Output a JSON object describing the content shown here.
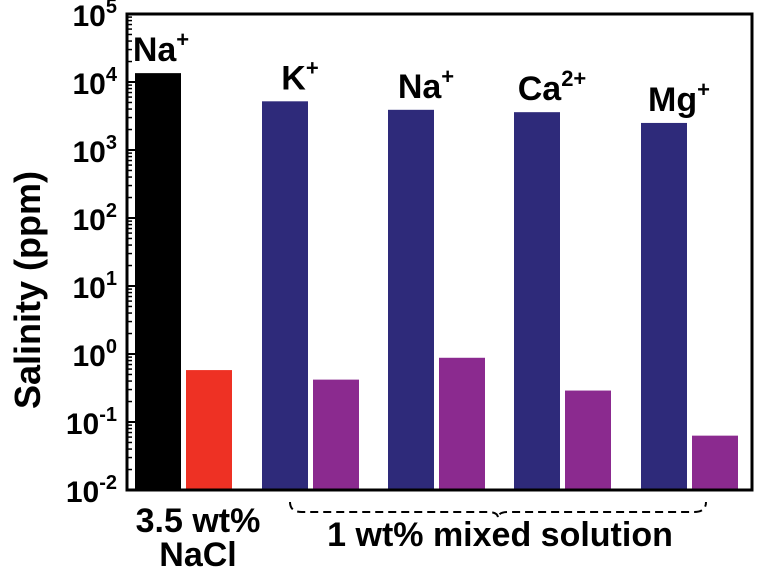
{
  "chart_data": {
    "type": "bar",
    "y_scale": "log",
    "ylabel": "Salinity (ppm)",
    "ylim": [
      0.01,
      100000
    ],
    "y_ticks": [
      {
        "base": "10",
        "exp": "-2",
        "value": 0.01
      },
      {
        "base": "10",
        "exp": "-1",
        "value": 0.1
      },
      {
        "base": "10",
        "exp": "0",
        "value": 1
      },
      {
        "base": "10",
        "exp": "1",
        "value": 10
      },
      {
        "base": "10",
        "exp": "2",
        "value": 100
      },
      {
        "base": "10",
        "exp": "3",
        "value": 1000
      },
      {
        "base": "10",
        "exp": "4",
        "value": 10000
      },
      {
        "base": "10",
        "exp": "5",
        "value": 100000
      }
    ],
    "colors": {
      "seawater_feed": "#000000",
      "seawater_product": "#ee3124",
      "mixed_feed": "#2e2a7a",
      "mixed_product": "#8b2a8f"
    },
    "categories": [
      {
        "label_line1": "3.5 wt%",
        "label_line2": "NaCl"
      },
      {
        "label_line1": "1 wt% mixed solution",
        "label_line2": ""
      }
    ],
    "groups": [
      {
        "ion": "Na",
        "charge": "+",
        "category": 0,
        "feed": 13500,
        "product": 0.58,
        "feed_color": "seawater_feed",
        "product_color": "seawater_product"
      },
      {
        "ion": "K",
        "charge": "+",
        "category": 1,
        "feed": 5200,
        "product": 0.42,
        "feed_color": "mixed_feed",
        "product_color": "mixed_product"
      },
      {
        "ion": "Na",
        "charge": "+",
        "category": 1,
        "feed": 3900,
        "product": 0.88,
        "feed_color": "mixed_feed",
        "product_color": "mixed_product"
      },
      {
        "ion": "Ca",
        "charge": "2+",
        "category": 1,
        "feed": 3600,
        "product": 0.29,
        "feed_color": "mixed_feed",
        "product_color": "mixed_product"
      },
      {
        "ion": "Mg",
        "charge": "+",
        "category": 1,
        "feed": 2500,
        "product": 0.063,
        "feed_color": "mixed_feed",
        "product_color": "mixed_product"
      }
    ]
  }
}
